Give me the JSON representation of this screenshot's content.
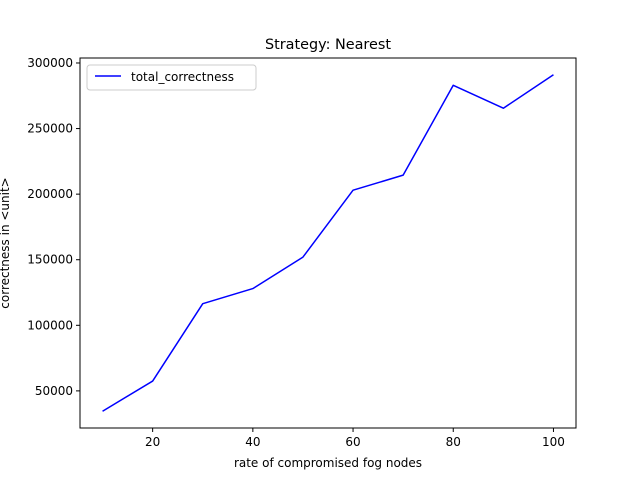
{
  "chart_data": {
    "type": "line",
    "title": "Strategy: Nearest",
    "xlabel": "rate of compromised fog nodes",
    "ylabel": "correctness in <unit>",
    "x": [
      10,
      20,
      30,
      40,
      50,
      60,
      70,
      80,
      90,
      100
    ],
    "series": [
      {
        "name": "total_correctness",
        "color": "#0000ff",
        "values": [
          34500,
          57500,
          116500,
          128000,
          152000,
          203000,
          214500,
          283000,
          265500,
          291000
        ]
      }
    ],
    "xlim": [
      5.5,
      104.5
    ],
    "ylim": [
      21700,
      303800
    ],
    "xticks": [
      20,
      40,
      60,
      80,
      100
    ],
    "yticks": [
      50000,
      100000,
      150000,
      200000,
      250000,
      300000
    ],
    "grid": false,
    "legend": "top-left"
  }
}
